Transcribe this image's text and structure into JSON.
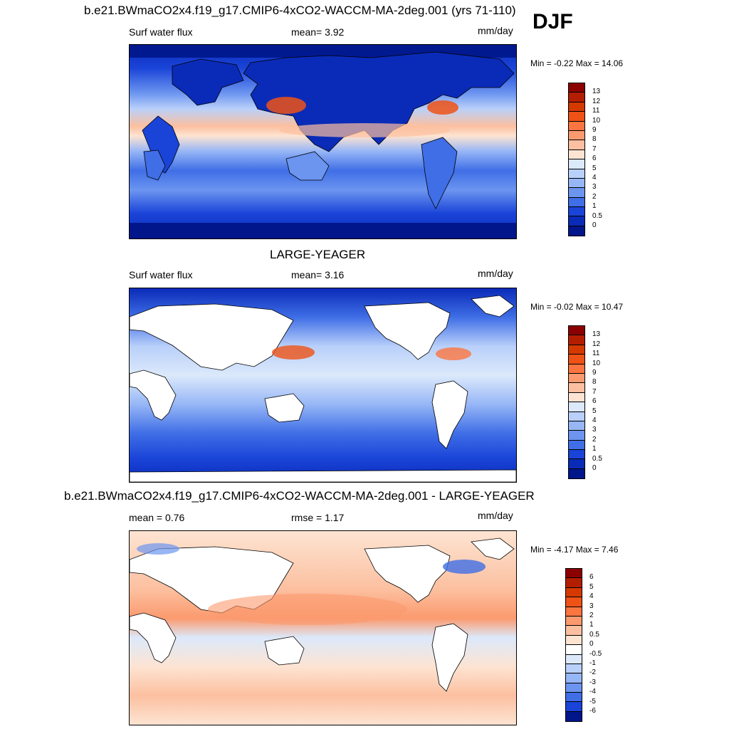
{
  "season": "DJF",
  "panels": [
    {
      "title": "b.e21.BWmaCO2x4.f19_g17.CMIP6-4xCO2-WACCM-MA-2deg.001 (yrs 71-110)",
      "left_label": "Surf water flux",
      "mid_label": "mean=   3.92",
      "units": "mm/day",
      "minmax": "Min =  -0.22 Max =  14.06",
      "levels": [
        "13",
        "12",
        "11",
        "10",
        "9",
        "8",
        "7",
        "6",
        "5",
        "4",
        "3",
        "2",
        "1",
        "0.5",
        "0"
      ],
      "colors": [
        "#8b0000",
        "#b41e00",
        "#d43a00",
        "#ee5216",
        "#fb7540",
        "#fb9a6e",
        "#fcc0a0",
        "#fde4d2",
        "#dce9fb",
        "#b9d0fa",
        "#96b6f6",
        "#6c95f0",
        "#3f6ee6",
        "#1a44d8",
        "#0a2bb8",
        "#00168a"
      ]
    },
    {
      "title": "LARGE-YEAGER",
      "left_label": "Surf water flux",
      "mid_label": "mean=   3.16",
      "units": "mm/day",
      "minmax": "Min =  -0.02 Max =  10.47",
      "levels": [
        "13",
        "12",
        "11",
        "10",
        "9",
        "8",
        "7",
        "6",
        "5",
        "4",
        "3",
        "2",
        "1",
        "0.5",
        "0"
      ],
      "colors": [
        "#8b0000",
        "#b41e00",
        "#d43a00",
        "#ee5216",
        "#fb7540",
        "#fb9a6e",
        "#fcc0a0",
        "#fde4d2",
        "#dce9fb",
        "#b9d0fa",
        "#96b6f6",
        "#6c95f0",
        "#3f6ee6",
        "#1a44d8",
        "#0a2bb8",
        "#00168a"
      ]
    },
    {
      "title": "b.e21.BWmaCO2x4.f19_g17.CMIP6-4xCO2-WACCM-MA-2deg.001 - LARGE-YEAGER",
      "left_label": "mean =   0.76",
      "mid_label": "rmse =   1.17",
      "units": "mm/day",
      "minmax": "Min =  -4.17 Max =   7.46",
      "levels": [
        "6",
        "5",
        "4",
        "3",
        "2",
        "1",
        "0.5",
        "0",
        "-0.5",
        "-1",
        "-2",
        "-3",
        "-4",
        "-5",
        "-6"
      ],
      "colors": [
        "#8b0000",
        "#b41e00",
        "#d43a00",
        "#ee5216",
        "#fb7540",
        "#fb9a6e",
        "#fcc0a0",
        "#fde4d2",
        "#ffffff",
        "#dce9fb",
        "#b9d0fa",
        "#96b6f6",
        "#6c95f0",
        "#3f6ee6",
        "#1a44d8",
        "#00168a"
      ]
    }
  ]
}
